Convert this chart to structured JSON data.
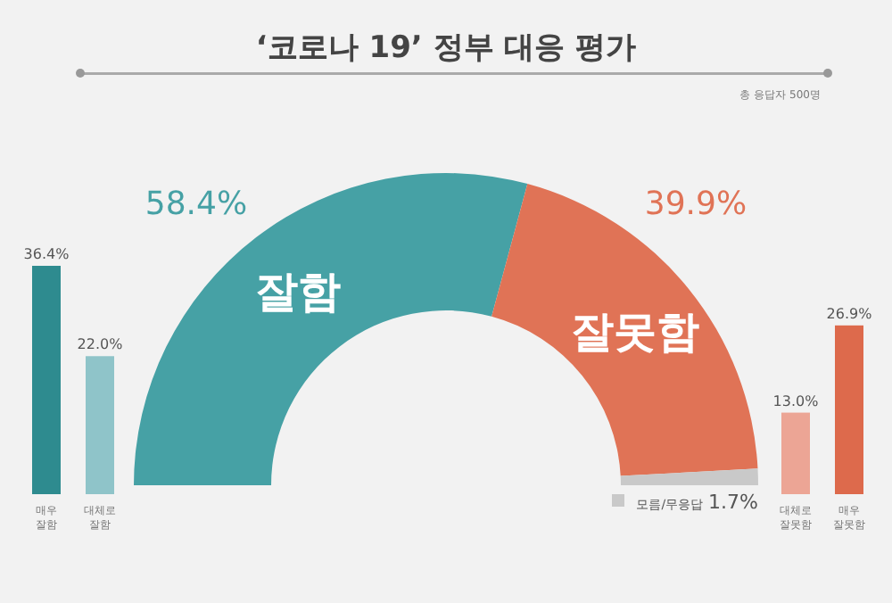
{
  "chart_data": [
    {
      "type": "donut",
      "title": "‘코로나 19’ 정부 대응 평가",
      "subtitle": "총 응답자 500명",
      "categories": [
        "잘함",
        "잘못함",
        "모름/무응답"
      ],
      "values": [
        58.4,
        39.9,
        1.7
      ],
      "colors": [
        "#46a1a5",
        "#e07356",
        "#c9c9c9"
      ],
      "value_labels": [
        "58.4%",
        "39.9%",
        "1.7%"
      ]
    },
    {
      "type": "bar",
      "categories": [
        "매우 잘함",
        "대체로 잘함"
      ],
      "values": [
        36.4,
        22.0
      ],
      "colors": [
        "#2e8b8f",
        "#8fc4c9"
      ],
      "value_labels": [
        "36.4%",
        "22.0%"
      ]
    },
    {
      "type": "bar",
      "categories": [
        "대체로 잘못함",
        "매우 잘못함"
      ],
      "values": [
        13.0,
        26.9
      ],
      "colors": [
        "#eca595",
        "#dd6a4c"
      ],
      "value_labels": [
        "13.0%",
        "26.9%"
      ]
    }
  ]
}
